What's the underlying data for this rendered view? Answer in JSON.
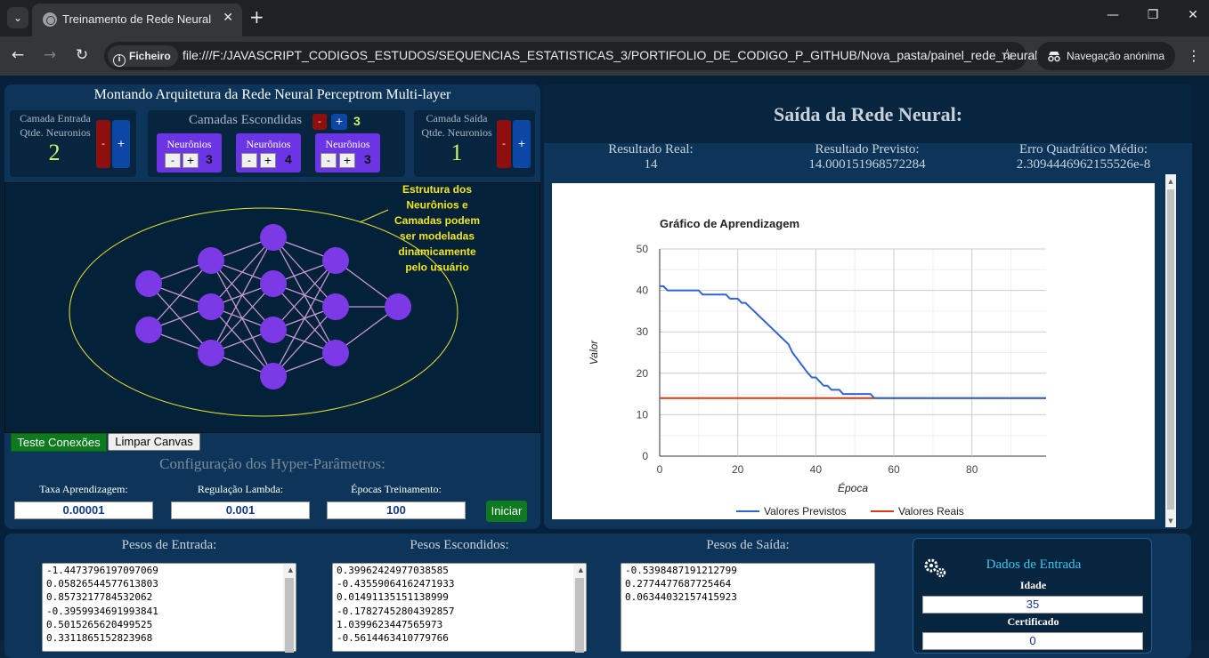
{
  "browser": {
    "tab_title": "Treinamento de Rede Neural",
    "site_chip": "Ficheiro",
    "url": "file:///F:/JAVASCRIPT_CODIGOS_ESTUDOS/SEQUENCIAS_ESTATISTICAS_3/PORTIFOLIO_DE_CODIGO_P_GITHUB/Nova_pasta/painel_rede_neural_p...",
    "incognito_label": "Navegação anónima"
  },
  "architecture": {
    "title": "Montando Arquitetura da Rede Neural Perceptrom Multi-layer",
    "input_label_1": "Camada Entrada",
    "input_label_2": "Qtde. Neuronios",
    "input_count": "2",
    "hidden_title": "Camadas Escondidas",
    "hidden_count": "3",
    "hidden_layers": [
      {
        "label": "Neurônios",
        "count": "3"
      },
      {
        "label": "Neurônios",
        "count": "4"
      },
      {
        "label": "Neurônios",
        "count": "3"
      }
    ],
    "output_label_1": "Camada Saída",
    "output_label_2": "Qtde. Neuronios",
    "output_count": "1",
    "minus": "-",
    "plus": "+"
  },
  "canvas": {
    "annotation": [
      "Estrutura dos",
      "Neurônios e",
      "Camadas podem",
      "ser modeladas",
      "dinamicamente",
      "pelo usuário"
    ],
    "layers": [
      2,
      3,
      4,
      3,
      1
    ],
    "node_color": "#7b3ae6",
    "edge_color": "#c79ad6",
    "ellipse_color": "#e8e832"
  },
  "actions": {
    "test_connections": "Teste Conexões",
    "clear_canvas": "Limpar Canvas",
    "start": "Iniciar"
  },
  "hyperparams": {
    "title": "Configuração dos Hyper-Parâmetros:",
    "learning_rate_label": "Taxa Aprendizagem:",
    "learning_rate_value": "0.00001",
    "lambda_label": "Regulação Lambda:",
    "lambda_value": "0.001",
    "epochs_label": "Épocas Treinamento:",
    "epochs_value": "100"
  },
  "output": {
    "title": "Saída da Rede Neural:",
    "real_label": "Resultado Real:",
    "real_value": "14",
    "predicted_label": "Resultado Previsto:",
    "predicted_value": "14.000151968572284",
    "mse_label": "Erro Quadrático Médio:",
    "mse_value": "2.3094446962155526e-8"
  },
  "chart_data": {
    "type": "line",
    "title": "Gráfico de Aprendizagem",
    "xlabel": "Época",
    "ylabel": "Valor",
    "xlim": [
      0,
      99
    ],
    "ylim": [
      0,
      50
    ],
    "xticks": [
      0,
      20,
      40,
      60,
      80
    ],
    "yticks": [
      0,
      10,
      20,
      30,
      40,
      50
    ],
    "grid": true,
    "legend_position": "bottom",
    "series": [
      {
        "name": "Valores Previstos",
        "color": "#3366cc",
        "points": [
          [
            0,
            41
          ],
          [
            1,
            41
          ],
          [
            2,
            40
          ],
          [
            10,
            40
          ],
          [
            11,
            39
          ],
          [
            17,
            39
          ],
          [
            18,
            38
          ],
          [
            20,
            38
          ],
          [
            21,
            37
          ],
          [
            22,
            37
          ],
          [
            33,
            27
          ],
          [
            34,
            25
          ],
          [
            38,
            20
          ],
          [
            39,
            19
          ],
          [
            40,
            19
          ],
          [
            41,
            18
          ],
          [
            42,
            17
          ],
          [
            43,
            17
          ],
          [
            44,
            16
          ],
          [
            46,
            16
          ],
          [
            47,
            15
          ],
          [
            54,
            15
          ],
          [
            55,
            14
          ],
          [
            99,
            14
          ]
        ]
      },
      {
        "name": "Valores Reais",
        "color": "#dc3912",
        "points": [
          [
            0,
            14
          ],
          [
            99,
            14
          ]
        ]
      }
    ]
  },
  "weights": {
    "input_title": "Pesos de Entrada:",
    "input_values": [
      "-1.4473796197097069",
      "0.05826544577613803",
      "0.8573217784532062",
      "-0.3959934691993841",
      "0.5015265620499525",
      "0.3311865152823968"
    ],
    "hidden_title": "Pesos Escondidos:",
    "hidden_values": [
      "0.39962424977038585",
      "-0.43559064162471933",
      "0.01491135151138999",
      "-0.17827452804392857",
      "1.0399623447565973",
      "-0.5614463410779766"
    ],
    "output_title": "Pesos de Saída:",
    "output_values": [
      "-0.5398487191212799",
      "0.2774477687725464",
      "0.06344032157415923"
    ]
  },
  "input_data": {
    "title": "Dados de Entrada",
    "age_label": "Idade",
    "age_value": "35",
    "cert_label": "Certificado",
    "cert_value": "0"
  }
}
